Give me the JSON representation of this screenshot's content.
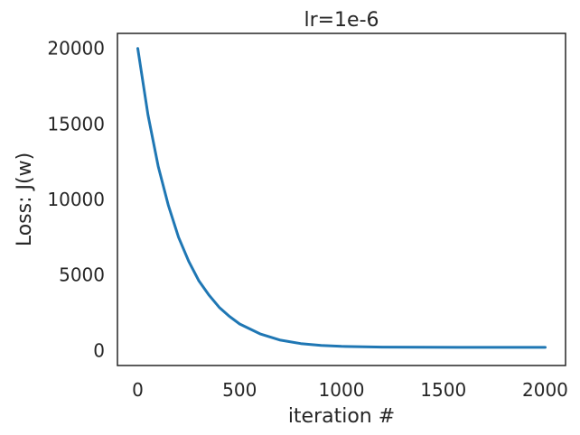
{
  "chart_data": {
    "type": "line",
    "title": "lr=1e-6",
    "xlabel": "iteration #",
    "ylabel": "Loss: J(w)",
    "xlim": [
      -100,
      2100
    ],
    "ylim": [
      -1000,
      21000
    ],
    "xticks": [
      0,
      500,
      1000,
      1500,
      2000
    ],
    "xtick_labels": [
      "0",
      "500",
      "1000",
      "1500",
      "2000"
    ],
    "yticks": [
      0,
      5000,
      10000,
      15000,
      20000
    ],
    "ytick_labels": [
      "0",
      "5000",
      "10000",
      "15000",
      "20000"
    ],
    "grid": false,
    "series": [
      {
        "color": "#1f77b4",
        "x": [
          0,
          50,
          100,
          150,
          200,
          250,
          300,
          350,
          400,
          450,
          500,
          600,
          700,
          800,
          900,
          1000,
          1200,
          1400,
          1600,
          1800,
          2000
        ],
        "y": [
          20000,
          15600,
          12200,
          9600,
          7500,
          5900,
          4600,
          3650,
          2850,
          2250,
          1750,
          1100,
          680,
          450,
          330,
          270,
          220,
          205,
          200,
          200,
          200
        ]
      }
    ]
  }
}
